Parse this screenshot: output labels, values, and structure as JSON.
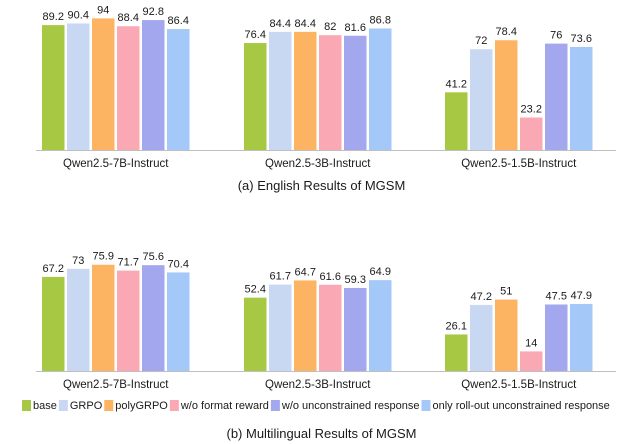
{
  "chart_data": [
    {
      "type": "bar",
      "title": "(a) English Results of MGSM",
      "categories": [
        "Qwen2.5-7B-Instruct",
        "Qwen2.5-3B-Instruct",
        "Qwen2.5-1.5B-Instruct"
      ],
      "ylim": [
        0,
        100
      ],
      "grid": false,
      "series": [
        {
          "name": "base",
          "color": "#a6c842",
          "values": [
            89.2,
            76.4,
            41.2
          ]
        },
        {
          "name": "GRPO",
          "color": "#c8d8f3",
          "values": [
            90.4,
            84.4,
            72
          ]
        },
        {
          "name": "polyGRPO",
          "color": "#fdb462",
          "values": [
            94,
            84.4,
            78.4
          ]
        },
        {
          "name": "w/o format reward",
          "color": "#f9a8b4",
          "values": [
            88.4,
            82,
            23.2
          ]
        },
        {
          "name": "w/o unconstrained response",
          "color": "#a3a7ee",
          "values": [
            92.8,
            81.6,
            76
          ]
        },
        {
          "name": "only roll-out unconstrained response",
          "color": "#a4c8f8",
          "values": [
            86.4,
            86.8,
            73.6
          ]
        }
      ]
    },
    {
      "type": "bar",
      "title": "(b) Multilingual Results of MGSM",
      "categories": [
        "Qwen2.5-7B-Instruct",
        "Qwen2.5-3B-Instruct",
        "Qwen2.5-1.5B-Instruct"
      ],
      "ylim": [
        0,
        100
      ],
      "grid": false,
      "legend_position": "bottom",
      "series": [
        {
          "name": "base",
          "color": "#a6c842",
          "values": [
            67.2,
            52.4,
            26.1
          ]
        },
        {
          "name": "GRPO",
          "color": "#c8d8f3",
          "values": [
            73,
            61.7,
            47.2
          ]
        },
        {
          "name": "polyGRPO",
          "color": "#fdb462",
          "values": [
            75.9,
            64.7,
            51
          ]
        },
        {
          "name": "w/o format reward",
          "color": "#f9a8b4",
          "values": [
            71.7,
            61.6,
            14
          ]
        },
        {
          "name": "w/o unconstrained response",
          "color": "#a3a7ee",
          "values": [
            75.6,
            59.3,
            47.5
          ]
        },
        {
          "name": "only roll-out unconstrained response",
          "color": "#a4c8f8",
          "values": [
            70.4,
            64.9,
            47.9
          ]
        }
      ]
    }
  ]
}
